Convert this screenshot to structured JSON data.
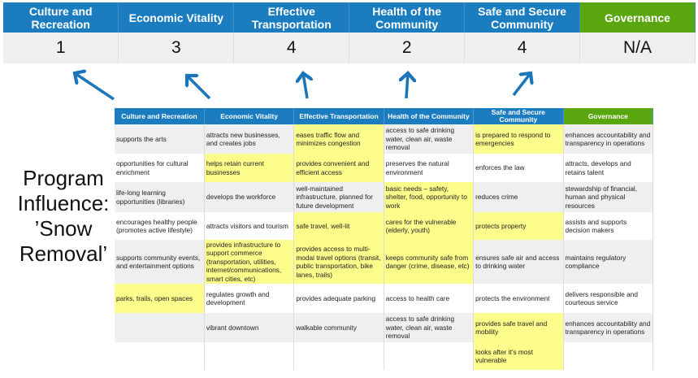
{
  "colors": {
    "header_blue": "#1b7dc0",
    "header_green": "#5aa60e",
    "highlight": "#fdfd8c",
    "arrow": "#1b75bb"
  },
  "summary": {
    "headers": [
      "Culture and Recreation",
      "Economic Vitality",
      "Effective Transportation",
      "Health of the Community",
      "Safe and Secure Community",
      "Governance"
    ],
    "values": [
      "1",
      "3",
      "4",
      "2",
      "4",
      "N/A"
    ]
  },
  "influence_label": {
    "lines": [
      "Program",
      "Influence:",
      "’Snow",
      "Removal’"
    ]
  },
  "matrix": {
    "headers": [
      "Culture and Recreation",
      "Economic Vitality",
      "Effective Transportation",
      "Health of the Community",
      "Safe and Secure Community",
      "Governance"
    ],
    "rows": [
      {
        "cells": [
          "supports the arts",
          "attracts new businesses, and creates jobs",
          "eases traffic flow and minimizes congestion",
          "access to safe drinking water, clean air, waste removal",
          "is prepared to respond to emergencies",
          "enhances accountability and transparency in operations"
        ],
        "highlighted": [
          false,
          false,
          true,
          false,
          true,
          false
        ]
      },
      {
        "cells": [
          "opportunities for cultural enrichment",
          "helps retain current businesses",
          "provides convenient and efficient access",
          "preserves the natural environment",
          "enforces the law",
          "attracts, develops and retains talent"
        ],
        "highlighted": [
          false,
          true,
          true,
          false,
          false,
          false
        ]
      },
      {
        "cells": [
          "life-long learning opportunities (libraries)",
          "develops the workforce",
          "well-maintained infrastructure, planned for future development",
          "basic needs – safety, shelter, food, opportunity to work",
          "reduces crime",
          "stewardship of financial, human and physical resources"
        ],
        "highlighted": [
          false,
          false,
          false,
          true,
          false,
          false
        ]
      },
      {
        "cells": [
          "encourages healthy people (promotes active lifestyle)",
          "attracts visitors and tourism",
          "safe travel, well-lit",
          "cares for the vulnerable (elderly, youth)",
          "protects property",
          "assists and supports decision makers"
        ],
        "highlighted": [
          false,
          false,
          true,
          true,
          true,
          false
        ]
      },
      {
        "cells": [
          "supports community events, and entertainment options",
          "provides infrastructure to support commerce (transportation, utilities, internet/communications, smart cities, etc)",
          "provides access to multi-modal travel options (transit, public transportation, bike lanes, trails)",
          "keeps community safe from danger (crime, disease, etc)",
          "ensures safe air and access to drinking water",
          "maintains regulatory compliance"
        ],
        "highlighted": [
          false,
          true,
          true,
          true,
          false,
          false
        ]
      },
      {
        "cells": [
          "parks, trails, open spaces",
          "regulates growth and development",
          "provides adequate parking",
          "access to health care",
          "protects the environment",
          "delivers responsible and courteous service"
        ],
        "highlighted": [
          true,
          false,
          false,
          false,
          false,
          false
        ]
      },
      {
        "cells": [
          "",
          "vibrant downtown",
          "walkable community",
          "access to safe drinking water, clean air, waste removal",
          "provides safe travel and mobility",
          "enhances accountability and transparency in operations"
        ],
        "highlighted": [
          false,
          false,
          false,
          false,
          true,
          false
        ]
      },
      {
        "cells": [
          "",
          "",
          "",
          "",
          "looks after it's most vulnerable",
          ""
        ],
        "highlighted": [
          false,
          false,
          false,
          false,
          true,
          false
        ]
      }
    ]
  }
}
